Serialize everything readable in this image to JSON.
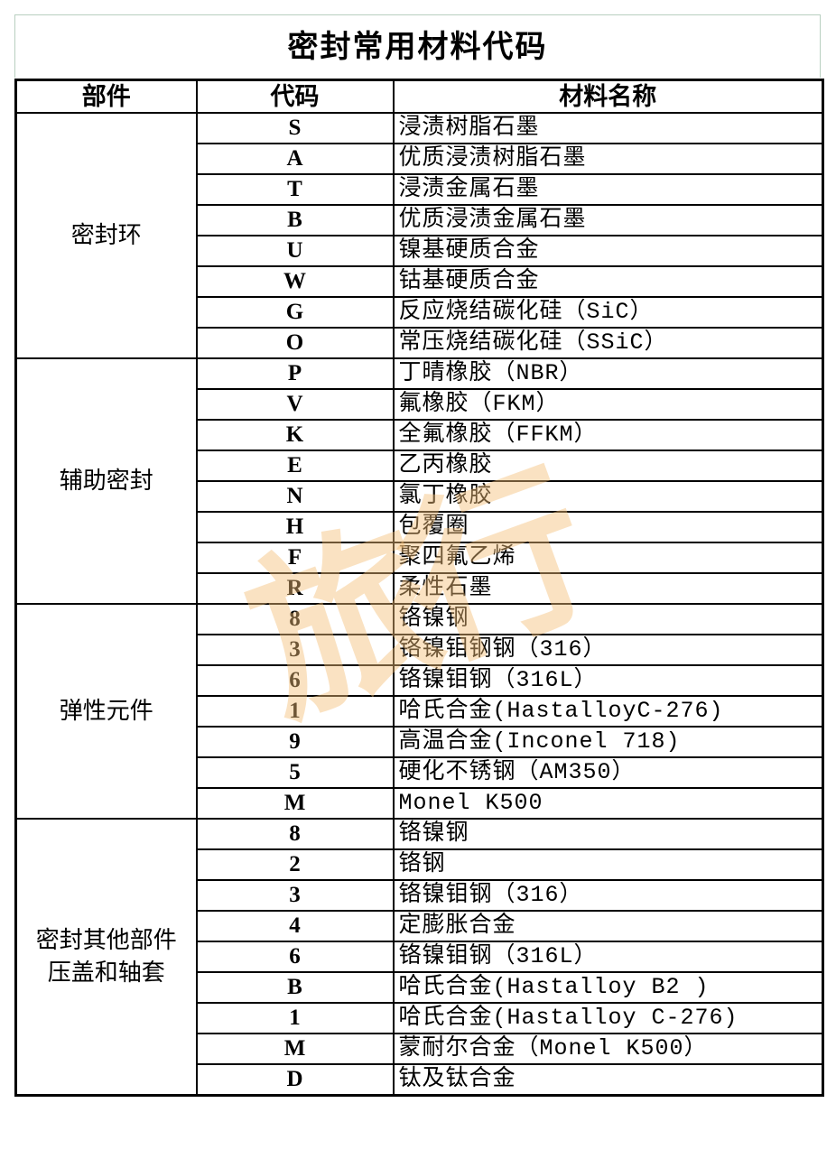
{
  "title": "密封常用材料代码",
  "headers": {
    "part": "部件",
    "code": "代码",
    "name": "材料名称"
  },
  "watermark": "旅行",
  "groups": [
    {
      "part": "密封环",
      "rows": [
        {
          "code": "S",
          "name": "浸渍树脂石墨"
        },
        {
          "code": "A",
          "name": "优质浸渍树脂石墨"
        },
        {
          "code": "T",
          "name": "浸渍金属石墨"
        },
        {
          "code": "B",
          "name": "优质浸渍金属石墨"
        },
        {
          "code": "U",
          "name": "镍基硬质合金"
        },
        {
          "code": "W",
          "name": "钴基硬质合金"
        },
        {
          "code": "G",
          "name": "反应烧结碳化硅（SiC）"
        },
        {
          "code": "O",
          "name": "常压烧结碳化硅（SSiC）"
        }
      ]
    },
    {
      "part": "辅助密封",
      "rows": [
        {
          "code": "P",
          "name": "丁晴橡胶（NBR）"
        },
        {
          "code": "V",
          "name": "氟橡胶（FKM）"
        },
        {
          "code": "K",
          "name": "全氟橡胶（FFKM）"
        },
        {
          "code": "E",
          "name": "乙丙橡胶"
        },
        {
          "code": "N",
          "name": "氯丁橡胶"
        },
        {
          "code": "H",
          "name": "包覆圈"
        },
        {
          "code": "F",
          "name": "聚四氟乙烯"
        },
        {
          "code": "R",
          "name": "柔性石墨"
        }
      ]
    },
    {
      "part": "弹性元件",
      "rows": [
        {
          "code": "8",
          "name": "铬镍钢"
        },
        {
          "code": "3",
          "name": "铬镍钼钢钢（316）"
        },
        {
          "code": "6",
          "name": "铬镍钼钢（316L）"
        },
        {
          "code": "1",
          "name": "哈氏合金(HastalloyC-276)"
        },
        {
          "code": "9",
          "name": "高温合金(Inconel 718)"
        },
        {
          "code": "5",
          "name": "硬化不锈钢（AM350）"
        },
        {
          "code": "M",
          "name": "Monel K500"
        }
      ]
    },
    {
      "part": "密封其他部件压盖和轴套",
      "rows": [
        {
          "code": "8",
          "name": "铬镍钢"
        },
        {
          "code": "2",
          "name": "铬钢"
        },
        {
          "code": "3",
          "name": "铬镍钼钢（316）"
        },
        {
          "code": "4",
          "name": "定膨胀合金"
        },
        {
          "code": "6",
          "name": "铬镍钼钢（316L）"
        },
        {
          "code": "B",
          "name": "哈氏合金(Hastalloy B2 )"
        },
        {
          "code": "1",
          "name": "哈氏合金(Hastalloy C-276)"
        },
        {
          "code": "M",
          "name": "蒙耐尔合金（Monel K500）"
        },
        {
          "code": "D",
          "name": "钛及钛合金"
        }
      ]
    }
  ]
}
